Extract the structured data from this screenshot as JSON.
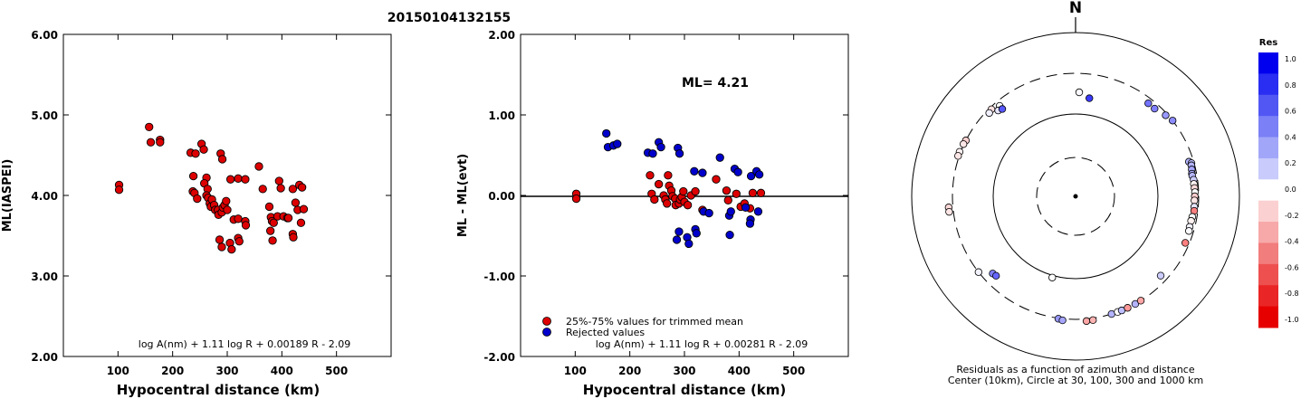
{
  "event_id": "20150104132155",
  "chart_data": [
    {
      "type": "scatter",
      "xlabel": "Hypocentral distance (km)",
      "ylabel": "ML(IASPEI)",
      "xlim": [
        0,
        600
      ],
      "ylim": [
        2.0,
        6.0
      ],
      "x_ticks": [
        "100",
        "200",
        "300",
        "400",
        "500"
      ],
      "y_ticks": [
        "2.00",
        "3.00",
        "4.00",
        "5.00",
        "6.00"
      ],
      "formula": "log A(nm) + 1.11 log R + 0.00189 R - 2.09",
      "series": [
        {
          "color": "#dd0000",
          "points": [
            [
              102,
              4.13
            ],
            [
              102,
              4.07
            ],
            [
              157,
              4.85
            ],
            [
              160,
              4.66
            ],
            [
              177,
              4.69
            ],
            [
              177,
              4.66
            ],
            [
              233,
              4.53
            ],
            [
              242,
              4.52
            ],
            [
              238,
              4.24
            ],
            [
              237,
              4.05
            ],
            [
              240,
              4.03
            ],
            [
              245,
              3.96
            ],
            [
              253,
              4.64
            ],
            [
              257,
              4.57
            ],
            [
              262,
              4.22
            ],
            [
              258,
              4.15
            ],
            [
              264,
              4.08
            ],
            [
              262,
              4.0
            ],
            [
              265,
              3.97
            ],
            [
              268,
              3.9
            ],
            [
              270,
              3.86
            ],
            [
              272,
              3.95
            ],
            [
              276,
              3.88
            ],
            [
              278,
              3.82
            ],
            [
              283,
              3.82
            ],
            [
              284,
              3.76
            ],
            [
              290,
              3.79
            ],
            [
              292,
              3.85
            ],
            [
              295,
              3.88
            ],
            [
              298,
              3.93
            ],
            [
              300,
              3.82
            ],
            [
              288,
              4.52
            ],
            [
              291,
              4.45
            ],
            [
              286,
              3.45
            ],
            [
              290,
              3.36
            ],
            [
              305,
              3.41
            ],
            [
              308,
              3.33
            ],
            [
              320,
              3.47
            ],
            [
              322,
              3.43
            ],
            [
              312,
              3.7
            ],
            [
              320,
              3.71
            ],
            [
              306,
              4.2
            ],
            [
              320,
              4.21
            ],
            [
              333,
              4.2
            ],
            [
              333,
              3.68
            ],
            [
              334,
              3.63
            ],
            [
              358,
              4.36
            ],
            [
              365,
              4.08
            ],
            [
              377,
              3.86
            ],
            [
              380,
              3.73
            ],
            [
              382,
              3.68
            ],
            [
              379,
              3.56
            ],
            [
              383,
              3.44
            ],
            [
              385,
              3.66
            ],
            [
              395,
              4.18
            ],
            [
              398,
              4.09
            ],
            [
              392,
              3.74
            ],
            [
              403,
              3.74
            ],
            [
              410,
              3.72
            ],
            [
              412,
              3.72
            ],
            [
              420,
              3.52
            ],
            [
              421,
              3.48
            ],
            [
              420,
              4.08
            ],
            [
              425,
              3.91
            ],
            [
              429,
              3.82
            ],
            [
              432,
              4.13
            ],
            [
              437,
              4.1
            ],
            [
              440,
              3.83
            ],
            [
              435,
              3.66
            ]
          ]
        }
      ]
    },
    {
      "type": "scatter",
      "xlabel": "Hypocentral distance (km)",
      "ylabel": "ML - ML(evt)",
      "xlim": [
        0,
        600
      ],
      "ylim": [
        -2.0,
        2.0
      ],
      "x_ticks": [
        "100",
        "200",
        "300",
        "400",
        "500"
      ],
      "y_ticks": [
        "-2.00",
        "-1.00",
        "0.00",
        "1.00",
        "2.00"
      ],
      "annotation": "ML= 4.21",
      "legend": {
        "position": "bottom-left",
        "entries": [
          {
            "label": "25%-75% values for trimmed mean",
            "color": "#dd0000"
          },
          {
            "label": "Rejected values",
            "color": "#0000cc"
          }
        ]
      },
      "formula": "log A(nm) + 1.11 log R + 0.00281 R - 2.09",
      "series": [
        {
          "color": "#dd0000",
          "points": [
            [
              102,
              0.02
            ],
            [
              102,
              -0.04
            ],
            [
              237,
              0.25
            ],
            [
              240,
              0.02
            ],
            [
              245,
              -0.05
            ],
            [
              253,
              0.14
            ],
            [
              262,
              0.0
            ],
            [
              265,
              -0.05
            ],
            [
              268,
              -0.1
            ],
            [
              270,
              0.25
            ],
            [
              272,
              0.12
            ],
            [
              276,
              0.06
            ],
            [
              278,
              -0.01
            ],
            [
              283,
              -0.04
            ],
            [
              284,
              -0.12
            ],
            [
              290,
              -0.1
            ],
            [
              292,
              -0.05
            ],
            [
              295,
              -0.02
            ],
            [
              298,
              0.05
            ],
            [
              300,
              -0.08
            ],
            [
              312,
              0.0
            ],
            [
              320,
              0.05
            ],
            [
              306,
              -0.12
            ],
            [
              333,
              -0.18
            ],
            [
              358,
              0.2
            ],
            [
              377,
              0.06
            ],
            [
              380,
              -0.06
            ],
            [
              395,
              0.02
            ],
            [
              403,
              -0.14
            ],
            [
              410,
              -0.1
            ],
            [
              420,
              -0.16
            ],
            [
              425,
              0.03
            ],
            [
              440,
              0.03
            ]
          ]
        },
        {
          "color": "#0000cc",
          "points": [
            [
              157,
              0.77
            ],
            [
              160,
              0.6
            ],
            [
              170,
              0.62
            ],
            [
              177,
              0.64
            ],
            [
              233,
              0.53
            ],
            [
              242,
              0.52
            ],
            [
              253,
              0.66
            ],
            [
              257,
              0.6
            ],
            [
              288,
              0.59
            ],
            [
              291,
              0.52
            ],
            [
              286,
              -0.55
            ],
            [
              290,
              -0.45
            ],
            [
              305,
              -0.52
            ],
            [
              308,
              -0.6
            ],
            [
              320,
              -0.42
            ],
            [
              322,
              -0.47
            ],
            [
              318,
              0.3
            ],
            [
              333,
              0.28
            ],
            [
              335,
              -0.2
            ],
            [
              345,
              -0.22
            ],
            [
              365,
              0.47
            ],
            [
              382,
              -0.25
            ],
            [
              383,
              -0.49
            ],
            [
              385,
              -0.2
            ],
            [
              392,
              0.33
            ],
            [
              398,
              0.29
            ],
            [
              412,
              -0.15
            ],
            [
              421,
              -0.3
            ],
            [
              420,
              -0.35
            ],
            [
              422,
              0.24
            ],
            [
              432,
              0.3
            ],
            [
              437,
              0.26
            ],
            [
              435,
              -0.2
            ]
          ]
        }
      ]
    },
    {
      "type": "scatter",
      "subtype": "polar",
      "north_label": "N",
      "caption_line1": "Residuals as a function of azimuth and distance",
      "caption_line2": "Center (10km), Circle at 30, 100, 300 and 1000 km",
      "rings_km": [
        10,
        30,
        100,
        300,
        1000
      ],
      "colorbar": {
        "title": "Res",
        "ticks": [
          "1.0",
          "0.8",
          "0.6",
          "0.4",
          "0.2",
          "0.0",
          "-0.2",
          "-0.4",
          "-0.6",
          "-0.8",
          "-1.0"
        ],
        "colors": [
          "#0000ee",
          "#2a2ef2",
          "#5257f4",
          "#7b80f6",
          "#a2a6f8",
          "#c8cbfb",
          "#ffffff",
          "#fbd0d0",
          "#f7a8a8",
          "#f27d7d",
          "#ee5050",
          "#ea2525",
          "#e60000"
        ]
      },
      "points": [
        {
          "az": 8,
          "dist": 157,
          "res": 0.77
        },
        {
          "az": 2,
          "dist": 180,
          "res": 0.02
        },
        {
          "az": 320,
          "dist": 262,
          "res": 0.0
        },
        {
          "az": 318,
          "dist": 245,
          "res": 0.1
        },
        {
          "az": 316,
          "dist": 284,
          "res": -0.12
        },
        {
          "az": 314,
          "dist": 276,
          "res": 0.06
        },
        {
          "az": 320,
          "dist": 235,
          "res": 0.66
        },
        {
          "az": 297,
          "dist": 300,
          "res": -0.18
        },
        {
          "az": 295,
          "dist": 305,
          "res": -0.1
        },
        {
          "az": 291,
          "dist": 310,
          "res": -0.05
        },
        {
          "az": 289,
          "dist": 310,
          "res": -0.1
        },
        {
          "az": 265,
          "dist": 340,
          "res": -0.15
        },
        {
          "az": 263,
          "dist": 340,
          "res": -0.1
        },
        {
          "az": 232,
          "dist": 300,
          "res": 0.05
        },
        {
          "az": 227,
          "dist": 230,
          "res": 0.5
        },
        {
          "az": 225,
          "dist": 225,
          "res": 0.6
        },
        {
          "az": 196,
          "dist": 106,
          "res": 0.0
        },
        {
          "az": 188,
          "dist": 305,
          "res": 0.4
        },
        {
          "az": 186,
          "dist": 315,
          "res": 0.35
        },
        {
          "az": 175,
          "dist": 320,
          "res": -0.35
        },
        {
          "az": 172,
          "dist": 318,
          "res": -0.3
        },
        {
          "az": 163,
          "dist": 300,
          "res": 0.3
        },
        {
          "az": 160,
          "dist": 300,
          "res": 0.0
        },
        {
          "az": 158,
          "dist": 300,
          "res": 0.25
        },
        {
          "az": 155,
          "dist": 300,
          "res": -0.4
        },
        {
          "az": 151,
          "dist": 300,
          "res": 0.3
        },
        {
          "az": 148,
          "dist": 300,
          "res": -0.35
        },
        {
          "az": 133,
          "dist": 250,
          "res": 0.2
        },
        {
          "az": 42,
          "dist": 262,
          "res": 0.5
        },
        {
          "az": 38,
          "dist": 262,
          "res": 0.55
        },
        {
          "az": 48,
          "dist": 285,
          "res": 0.4
        },
        {
          "az": 52,
          "dist": 300,
          "res": 0.45
        },
        {
          "az": 73,
          "dist": 265,
          "res": 0.3
        },
        {
          "az": 74,
          "dist": 280,
          "res": 0.25
        },
        {
          "az": 75,
          "dist": 275,
          "res": 0.3
        },
        {
          "az": 77,
          "dist": 270,
          "res": 0.35
        },
        {
          "az": 79,
          "dist": 265,
          "res": 0.32
        },
        {
          "az": 80,
          "dist": 265,
          "res": 0.28
        },
        {
          "az": 82,
          "dist": 270,
          "res": 0.2
        },
        {
          "az": 84,
          "dist": 268,
          "res": -0.05
        },
        {
          "az": 86,
          "dist": 270,
          "res": -0.15
        },
        {
          "az": 88,
          "dist": 272,
          "res": 0.0
        },
        {
          "az": 90,
          "dist": 270,
          "res": -0.2
        },
        {
          "az": 92,
          "dist": 268,
          "res": -0.1
        },
        {
          "az": 95,
          "dist": 270,
          "res": 0.1
        },
        {
          "az": 97,
          "dist": 272,
          "res": -0.5
        },
        {
          "az": 100,
          "dist": 265,
          "res": 0.02
        },
        {
          "az": 102,
          "dist": 262,
          "res": -0.05
        },
        {
          "az": 105,
          "dist": 262,
          "res": 0.05
        },
        {
          "az": 107,
          "dist": 265,
          "res": 0.02
        },
        {
          "az": 113,
          "dist": 270,
          "res": -0.5
        }
      ]
    }
  ]
}
